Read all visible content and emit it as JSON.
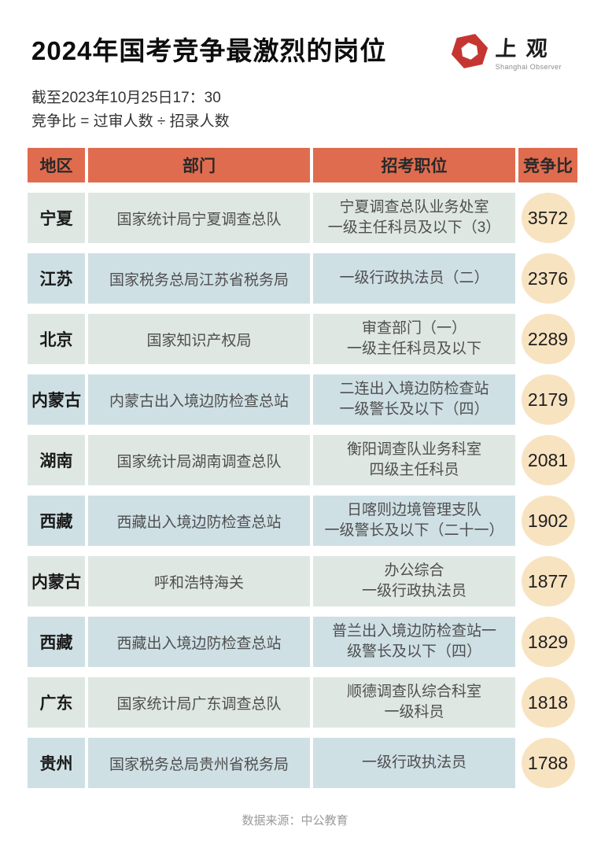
{
  "header": {
    "title": "2024年国考竞争最激烈的岗位",
    "logo": {
      "cn": "上观",
      "en": "Shanghai Observer"
    }
  },
  "meta": {
    "deadline": "截至2023年10月25日17：30",
    "formula": "竞争比 = 过审人数 ÷ 招录人数"
  },
  "table": {
    "columns": [
      "地区",
      "部门",
      "招考职位",
      "竞争比"
    ],
    "rows": [
      {
        "region": "宁夏",
        "department": "国家统计局宁夏调查总队",
        "position": "宁夏调查总队业务处室\n一级主任科员及以下（3）",
        "ratio": "3572"
      },
      {
        "region": "江苏",
        "department": "国家税务总局江苏省税务局",
        "position": "一级行政执法员（二）",
        "ratio": "2376"
      },
      {
        "region": "北京",
        "department": "国家知识产权局",
        "position": "审查部门（一）\n一级主任科员及以下",
        "ratio": "2289"
      },
      {
        "region": "内蒙古",
        "department": "内蒙古出入境边防检查总站",
        "position": "二连出入境边防检查站\n一级警长及以下（四）",
        "ratio": "2179"
      },
      {
        "region": "湖南",
        "department": "国家统计局湖南调查总队",
        "position": "衡阳调查队业务科室\n四级主任科员",
        "ratio": "2081"
      },
      {
        "region": "西藏",
        "department": "西藏出入境边防检查总站",
        "position": "日喀则边境管理支队\n一级警长及以下（二十一）",
        "ratio": "1902"
      },
      {
        "region": "内蒙古",
        "department": "呼和浩特海关",
        "position": "办公综合\n一级行政执法员",
        "ratio": "1877"
      },
      {
        "region": "西藏",
        "department": "西藏出入境边防检查总站",
        "position": "普兰出入境边防检查站一\n级警长及以下（四）",
        "ratio": "1829"
      },
      {
        "region": "广东",
        "department": "国家统计局广东调查总队",
        "position": "顺德调查队综合科室\n一级科员",
        "ratio": "1818"
      },
      {
        "region": "贵州",
        "department": "国家税务总局贵州省税务局",
        "position": "一级行政执法员",
        "ratio": "1788"
      }
    ]
  },
  "footer": {
    "source": "数据来源：中公教育"
  },
  "colors": {
    "header_bg": "#e06c4f",
    "row_odd_bg": "#dfe7e3",
    "row_even_bg": "#cfe0e5",
    "circle_bg": "#f8e3c1",
    "logo_red": "#c53632",
    "title_color": "#0d0d0d",
    "footer_gray": "#9a9a9a"
  }
}
